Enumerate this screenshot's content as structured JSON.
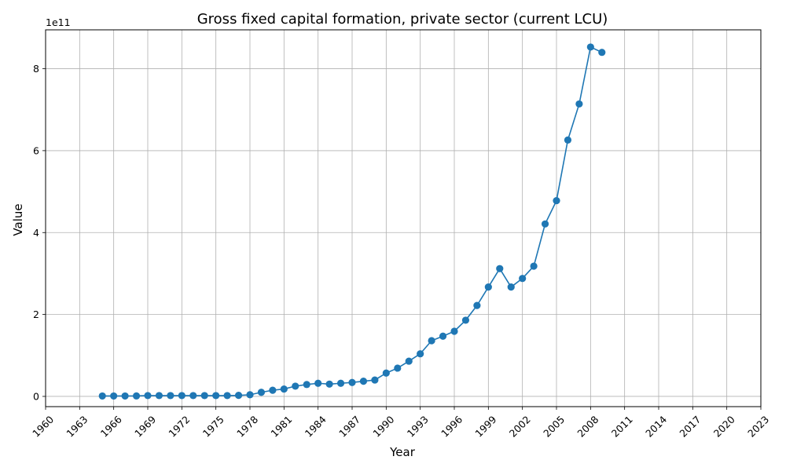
{
  "chart_data": {
    "type": "line",
    "title": "Gross fixed capital formation, private sector (current LCU)",
    "xlabel": "Year",
    "ylabel": "Value",
    "offset_text": "1e11",
    "xlim": [
      1960,
      2023
    ],
    "ylim": [
      -25000000000.0,
      895000000000.0
    ],
    "x_ticks": [
      1960,
      1963,
      1966,
      1969,
      1972,
      1975,
      1978,
      1981,
      1984,
      1987,
      1990,
      1993,
      1996,
      1999,
      2002,
      2005,
      2008,
      2011,
      2014,
      2017,
      2020,
      2023
    ],
    "y_ticks": [
      0,
      200000000000.0,
      400000000000.0,
      600000000000.0,
      800000000000.0
    ],
    "y_tick_labels": [
      "0",
      "2",
      "4",
      "6",
      "8"
    ],
    "grid": true,
    "color": "#1f77b4",
    "series": [
      {
        "marker": "circle",
        "x": [
          1965,
          1966,
          1967,
          1968,
          1969,
          1970,
          1971,
          1972,
          1973,
          1974,
          1975,
          1976,
          1977,
          1978,
          1979,
          1980,
          1981,
          1982,
          1983,
          1984,
          1985,
          1986,
          1987,
          1988,
          1989,
          1990,
          1991,
          1992,
          1993,
          1994,
          1995,
          1996,
          1997,
          1998,
          1999,
          2000,
          2001,
          2002,
          2003,
          2004,
          2005,
          2006,
          2007,
          2008,
          2009
        ],
        "y": [
          1000000000.0,
          1000000000.0,
          1000000000.0,
          1200000000.0,
          2000000000.0,
          2000000000.0,
          2000000000.0,
          2000000000.0,
          2000000000.0,
          2000000000.0,
          2000000000.0,
          2000000000.0,
          2500000000.0,
          4000000000.0,
          10000000000.0,
          15000000000.0,
          18000000000.0,
          25000000000.0,
          29000000000.0,
          32000000000.0,
          30000000000.0,
          32000000000.0,
          34000000000.0,
          37000000000.0,
          40000000000.0,
          57000000000.0,
          69000000000.0,
          86000000000.0,
          104000000000.0,
          136000000000.0,
          147000000000.0,
          159000000000.0,
          186000000000.0,
          222000000000.0,
          267000000000.0,
          312000000000.0,
          267000000000.0,
          288000000000.0,
          318000000000.0,
          421000000000.0,
          478000000000.0,
          626000000000.0,
          714000000000.0,
          853000000000.0,
          840000000000.0
        ]
      }
    ]
  }
}
